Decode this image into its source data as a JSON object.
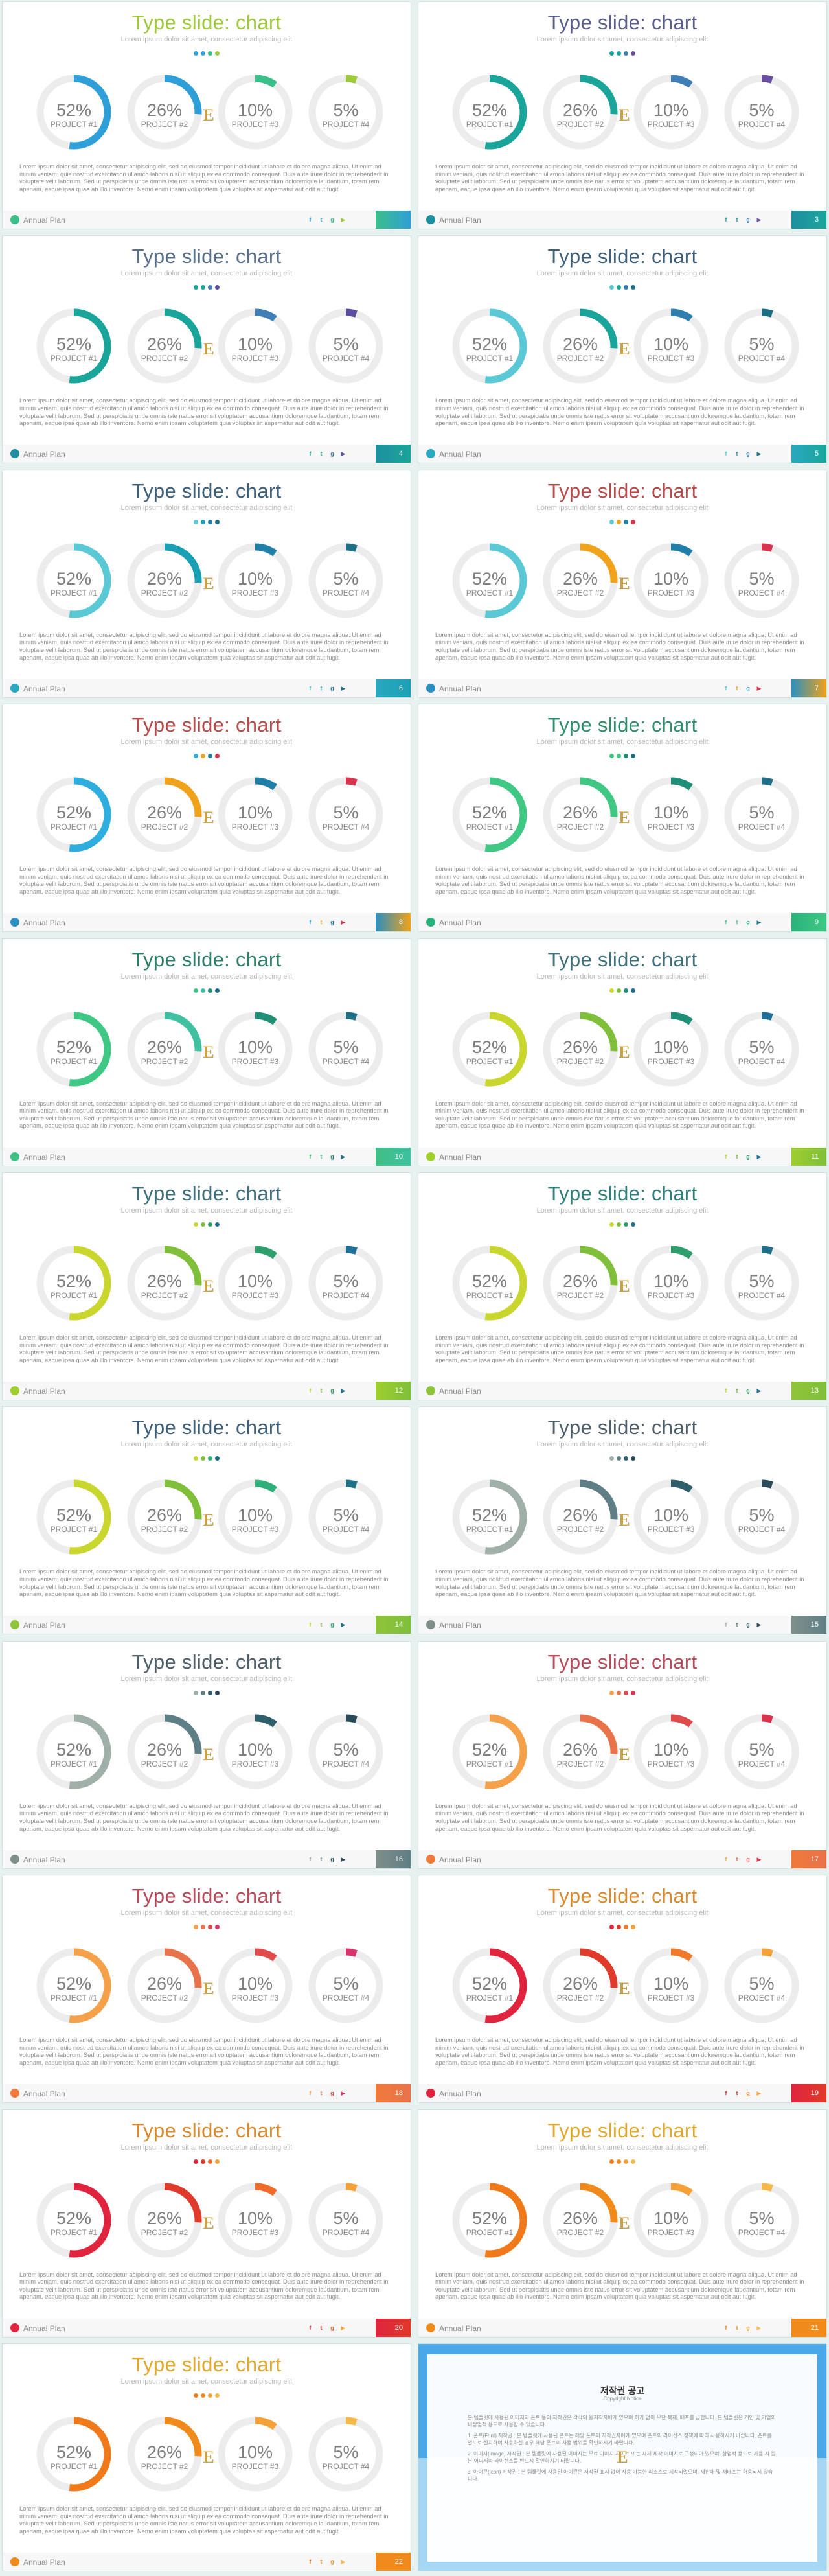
{
  "deck": {
    "title": "Type slide: chart",
    "subtitle": "Lorem ipsum dolor sit amet, consectetur adipiscing elit",
    "body": "Lorem ipsum dolor sit amet, consectetur adipiscing elit, sed do eiusmod tempor incididunt ut labore et dolore magna aliqua. Ut enim ad minim veniam, quis nostrud exercitation ullamco laboris nisi ut aliquip ex ea commodo consequat. Duis aute irure dolor in reprehenderit in voluptate velit laborum. Sed ut perspiciatis unde omnis iste natus error sit voluptatem accusantium doloremque laudantium, totam rem aperiam, eaque ipsa quae ab illo inventore. Nemo enim ipsam voluptatem quia voluptas sit aspernatur aut odit aut fugit.",
    "footer_label": "Annual Plan",
    "logo_glyph": "E",
    "social_icons": [
      {
        "name": "facebook-icon",
        "glyph": "f"
      },
      {
        "name": "twitter-icon",
        "glyph": "t"
      },
      {
        "name": "googleplus-icon",
        "glyph": "g"
      },
      {
        "name": "youtube-icon",
        "glyph": "▶"
      }
    ],
    "ring_track_color": "#ececec",
    "projects": [
      {
        "label": "PROJECT #1",
        "value_text": "52%",
        "value": 52
      },
      {
        "label": "PROJECT #2",
        "value_text": "26%",
        "value": 26
      },
      {
        "label": "PROJECT #3",
        "value_text": "10%",
        "value": 10
      },
      {
        "label": "PROJECT #4",
        "value_text": "5%",
        "value": 5
      }
    ]
  },
  "slides": [
    {
      "page": "",
      "title_color": "#9ec93b",
      "colors": [
        "#2e9fd8",
        "#2e9fd8",
        "#3bbf8a",
        "#9ec93b"
      ],
      "dots": [
        "#2e9fd8",
        "#2e9fd8",
        "#3bbf8a",
        "#9ec93b"
      ],
      "accent": "#3bbf8a"
    },
    {
      "page": "3",
      "title_color": "#5a5f8a",
      "colors": [
        "#1aa59a",
        "#1aa59a",
        "#3f7fb6",
        "#6a4fa0"
      ],
      "dots": [
        "#1aa59a",
        "#1aa59a",
        "#3f7fb6",
        "#6a4fa0"
      ],
      "accent": "#1e8fa0"
    },
    {
      "page": "4",
      "title_color": "#5a6f8a",
      "colors": [
        "#1aa59a",
        "#1aa59a",
        "#3f7fb6",
        "#5a4fa0"
      ],
      "dots": [
        "#1aa59a",
        "#1aa59a",
        "#3f7fb6",
        "#5a4fa0"
      ],
      "accent": "#1e8fa0"
    },
    {
      "page": "5",
      "title_color": "#3e5f7a",
      "colors": [
        "#5bc8d6",
        "#1aa59a",
        "#2e7fb0",
        "#1d6f86"
      ],
      "dots": [
        "#5bc8d6",
        "#1aa59a",
        "#2e7fb0",
        "#1d6f86"
      ],
      "accent": "#2aa8c0"
    },
    {
      "page": "6",
      "title_color": "#3e5f7a",
      "colors": [
        "#5bc8d6",
        "#1aa0b5",
        "#1f7fa8",
        "#1d6f86"
      ],
      "dots": [
        "#5bc8d6",
        "#1aa0b5",
        "#1f7fa8",
        "#1d6f86"
      ],
      "accent": "#2aa8c0"
    },
    {
      "page": "7",
      "title_color": "#b94a4a",
      "colors": [
        "#5bc8d6",
        "#f0a21a",
        "#1f7fa8",
        "#d9334e"
      ],
      "dots": [
        "#5bc8d6",
        "#f0a21a",
        "#1f7fa8",
        "#d9334e"
      ],
      "accent": "#2a8fc0"
    },
    {
      "page": "8",
      "title_color": "#b94a4a",
      "colors": [
        "#2eaede",
        "#f0a21a",
        "#1f7fa8",
        "#d9334e"
      ],
      "dots": [
        "#2eaede",
        "#f0a21a",
        "#1f7fa8",
        "#d9334e"
      ],
      "accent": "#2a8fc0"
    },
    {
      "page": "9",
      "title_color": "#2e8f6a",
      "colors": [
        "#3fc884",
        "#3fc884",
        "#1f8f78",
        "#1f6f86"
      ],
      "dots": [
        "#3fc884",
        "#3fc884",
        "#1f8f78",
        "#1f6f86"
      ],
      "accent": "#2ab37a"
    },
    {
      "page": "10",
      "title_color": "#2e7f6a",
      "colors": [
        "#3fc884",
        "#3fc0a0",
        "#1f8f78",
        "#1f6f86"
      ],
      "dots": [
        "#3fc884",
        "#3fc0a0",
        "#1f8f78",
        "#1f6f86"
      ],
      "accent": "#3fbf84"
    },
    {
      "page": "11",
      "title_color": "#3e6f7a",
      "colors": [
        "#c8d62e",
        "#7fbf3a",
        "#1f8f78",
        "#1f6f96"
      ],
      "dots": [
        "#c8d62e",
        "#7fbf3a",
        "#1f8f78",
        "#1f6f96"
      ],
      "accent": "#9fce2e"
    },
    {
      "page": "12",
      "title_color": "#3e6f7a",
      "colors": [
        "#c8d62e",
        "#7fbf3a",
        "#2e9f6a",
        "#1f6f96"
      ],
      "dots": [
        "#c8d62e",
        "#7fbf3a",
        "#2e9f6a",
        "#1f6f96"
      ],
      "accent": "#9fce2e"
    },
    {
      "page": "13",
      "title_color": "#2e7f7a",
      "colors": [
        "#c8d62e",
        "#7fbf3a",
        "#2e9f6a",
        "#1f6f86"
      ],
      "dots": [
        "#c8d62e",
        "#7fbf3a",
        "#2e9f6a",
        "#1f6f86"
      ],
      "accent": "#8fc43a"
    },
    {
      "page": "14",
      "title_color": "#3e5f7a",
      "colors": [
        "#c8d62e",
        "#7fbf3a",
        "#2eaf7a",
        "#1f6f86"
      ],
      "dots": [
        "#c8d62e",
        "#7fbf3a",
        "#2eaf7a",
        "#1f6f86"
      ],
      "accent": "#8fc43a"
    },
    {
      "page": "15",
      "title_color": "#4e5f6a",
      "colors": [
        "#9fb0a8",
        "#5f7f86",
        "#2e5f6a",
        "#2a4a5a"
      ],
      "dots": [
        "#9fb0a8",
        "#5f7f86",
        "#2e5f6a",
        "#2a4a5a"
      ],
      "accent": "#7f8f8a"
    },
    {
      "page": "16",
      "title_color": "#4e5f6a",
      "colors": [
        "#9fb0a8",
        "#5f7f86",
        "#2e5f6a",
        "#2a4a5a"
      ],
      "dots": [
        "#9fb0a8",
        "#5f7f86",
        "#2e5f6a",
        "#2a4a5a"
      ],
      "accent": "#7f8f8a"
    },
    {
      "page": "17",
      "title_color": "#b94a5a",
      "colors": [
        "#f5a14a",
        "#e8734a",
        "#e04a4a",
        "#d9334e"
      ],
      "dots": [
        "#f5a14a",
        "#e8734a",
        "#e04a4a",
        "#d9334e"
      ],
      "accent": "#f07a3a"
    },
    {
      "page": "18",
      "title_color": "#b94a5a",
      "colors": [
        "#f5a14a",
        "#e8734a",
        "#e04a4a",
        "#d9336e"
      ],
      "dots": [
        "#f5a14a",
        "#e8734a",
        "#e04a4a",
        "#d9336e"
      ],
      "accent": "#f07a3a"
    },
    {
      "page": "19",
      "title_color": "#d98a2e",
      "colors": [
        "#e0243e",
        "#e03a2a",
        "#f07a2a",
        "#f5a13a"
      ],
      "dots": [
        "#e0243e",
        "#e03a2a",
        "#f07a2a",
        "#f5a13a"
      ],
      "accent": "#e0243e"
    },
    {
      "page": "20",
      "title_color": "#d98a2e",
      "colors": [
        "#e0243e",
        "#e03a2a",
        "#f06a2a",
        "#f5a13a"
      ],
      "dots": [
        "#e0243e",
        "#e03a2a",
        "#f06a2a",
        "#f5a13a"
      ],
      "accent": "#e0243e"
    },
    {
      "page": "21",
      "title_color": "#e0a82e",
      "colors": [
        "#f07a1a",
        "#f08a1a",
        "#f5a13a",
        "#f5b84a"
      ],
      "dots": [
        "#f07a1a",
        "#f08a1a",
        "#f5a13a",
        "#f5b84a"
      ],
      "accent": "#f08a1a"
    },
    {
      "page": "22",
      "title_color": "#e0a82e",
      "colors": [
        "#f07a1a",
        "#f08a1a",
        "#f5a13a",
        "#f5b84a"
      ],
      "dots": [
        "#f07a1a",
        "#f08a1a",
        "#f5a13a",
        "#f5b84a"
      ],
      "accent": "#f08a1a"
    }
  ],
  "notice": {
    "title": "저작권 공고",
    "subtitle": "Copyright Notice",
    "paragraphs": [
      "본 템플릿에 사용된 이미지와 폰트 등의 저작권은 각각의 원저작자에게 있으며 허가 없이 무단 복제, 배포를 금합니다. 본 템플릿은 개인 및 기업의 비상업적 용도로 사용할 수 있습니다.",
      "1. 폰트(Font) 저작권 : 본 템플릿에 사용된 폰트는 해당 폰트의 저작권자에게 있으며 폰트의 라이선스 정책에 따라 사용하시기 바랍니다. 폰트를 별도로 설치하여 사용하실 경우 해당 폰트의 사용 범위를 확인하시기 바랍니다.",
      "2. 이미지(Image) 저작권 : 본 템플릿에 사용된 이미지는 무료 이미지 사이트 또는 자체 제작 이미지로 구성되어 있으며, 상업적 용도로 사용 시 원본 이미지의 라이선스를 반드시 확인하시기 바랍니다.",
      "3. 아이콘(Icon) 저작권 : 본 템플릿에 사용된 아이콘은 저작권 표시 없이 사용 가능한 리소스로 제작되었으며, 재판매 및 재배포는 허용되지 않습니다."
    ]
  }
}
